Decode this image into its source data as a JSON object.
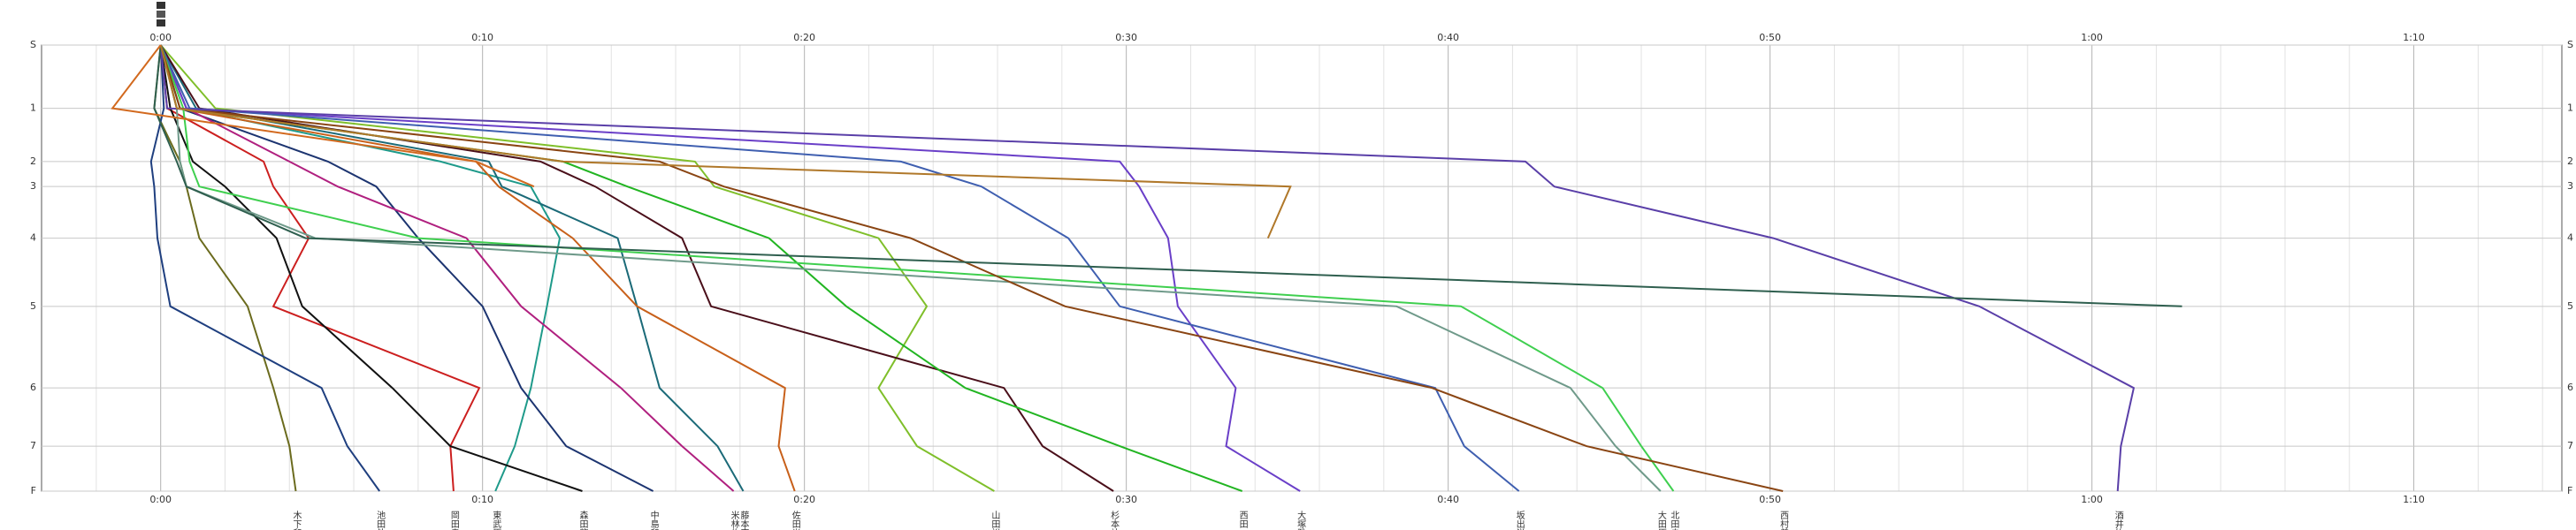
{
  "chart_data": {
    "type": "line",
    "ylabels": [
      "S",
      "1",
      "2",
      "3",
      "4",
      "5",
      "6",
      "7",
      "F"
    ],
    "y": [
      0,
      38,
      70,
      85,
      116,
      157,
      206,
      241,
      268
    ],
    "ylim": [
      0,
      268
    ],
    "xlim": [
      -3.7,
      74.6
    ],
    "xticks": [
      {
        "value": 0,
        "label": "0:00"
      },
      {
        "value": 10,
        "label": "0:10"
      },
      {
        "value": 20,
        "label": "0:20"
      },
      {
        "value": 30,
        "label": "0:30"
      },
      {
        "value": 40,
        "label": "0:40"
      },
      {
        "value": 50,
        "label": "0:50"
      },
      {
        "value": 60,
        "label": "1:00"
      },
      {
        "value": 70,
        "label": "1:10"
      }
    ],
    "grid": true,
    "series": [
      {
        "name": "木下和",
        "color": "#6b6b1e",
        "values": [
          0,
          -0.2,
          0.6,
          0.8,
          1.2,
          2.7,
          3.5,
          4.0,
          4.2
        ]
      },
      {
        "name": "池田外",
        "color": "#1f3f7f",
        "values": [
          0,
          0.1,
          -0.3,
          -0.2,
          -0.1,
          0.3,
          5.0,
          5.8,
          6.8
        ]
      },
      {
        "name": "岡田幸",
        "color": "#cc1f1f",
        "values": [
          0,
          0.2,
          3.2,
          3.5,
          4.6,
          3.5,
          9.9,
          9.0,
          9.1
        ]
      },
      {
        "name": "東武原",
        "color": "#1e9a8a",
        "values": [
          0,
          0.8,
          8.7,
          11.5,
          12.4,
          12.0,
          11.5,
          11.0,
          10.4
        ]
      },
      {
        "name": "森田龍",
        "color": "#111111",
        "values": [
          0,
          0.3,
          1.0,
          2.0,
          3.6,
          4.4,
          7.2,
          9.0,
          13.1
        ]
      },
      {
        "name": "中島和",
        "color": "#1c3470",
        "values": [
          0,
          0.6,
          5.2,
          6.7,
          8.0,
          10.0,
          11.2,
          12.6,
          15.3
        ]
      },
      {
        "name": "米林佐",
        "color": "#b0207f",
        "values": [
          0,
          0.8,
          4.0,
          5.5,
          9.5,
          11.2,
          14.3,
          16.2,
          17.8
        ]
      },
      {
        "name": "藤本宗",
        "color": "#1b6a78",
        "values": [
          0,
          1.1,
          10.2,
          10.6,
          14.2,
          14.8,
          15.5,
          17.3,
          18.1
        ]
      },
      {
        "name": "佐田光",
        "color": "#c8601a",
        "values": [
          0,
          0.5,
          9.8,
          10.5,
          12.8,
          14.8,
          19.4,
          19.2,
          19.7
        ]
      },
      {
        "name": "山田裕",
        "color": "#7fbf2a",
        "values": [
          0,
          1.7,
          16.6,
          17.2,
          22.3,
          23.8,
          22.3,
          23.5,
          25.9
        ]
      },
      {
        "name": "杉本祐",
        "color": "#4a0f1a",
        "values": [
          0,
          1.2,
          11.8,
          13.5,
          16.2,
          17.1,
          26.2,
          27.4,
          29.6
        ]
      },
      {
        "name": "西田一",
        "color": "#22b522",
        "values": [
          0,
          0.5,
          12.5,
          14.5,
          18.9,
          21.3,
          25.0,
          29.8,
          33.6
        ]
      },
      {
        "name": "大塚雅",
        "color": "#6a3fc8",
        "values": [
          0,
          0.8,
          29.8,
          30.4,
          31.3,
          31.6,
          33.4,
          33.1,
          35.4
        ]
      },
      {
        "name": "坂出洋",
        "color": "#3f5fb0",
        "values": [
          0,
          0.9,
          23.0,
          25.5,
          28.2,
          29.8,
          39.6,
          40.5,
          42.2
        ]
      },
      {
        "name": "大田原",
        "color": "#6f9a8a",
        "values": [
          0,
          0.5,
          0.6,
          0.8,
          4.8,
          38.4,
          43.8,
          45.2,
          46.6
        ]
      },
      {
        "name": "北田圭",
        "color": "#3fcf4f",
        "values": [
          0,
          0.7,
          0.9,
          1.2,
          8.0,
          40.4,
          44.8,
          46.0,
          47.0
        ]
      },
      {
        "name": "西村美",
        "color": "#8a4513",
        "values": [
          0,
          0.6,
          15.5,
          17.5,
          23.3,
          28.1,
          39.5,
          44.3,
          50.4
        ]
      },
      {
        "name": "酒井竹",
        "color": "#5a3fa8",
        "values": [
          0,
          0.2,
          42.4,
          43.3,
          50.1,
          56.5,
          61.3,
          60.9,
          60.8
        ]
      },
      {
        "color": "#2f5f4f",
        "values": [
          0,
          -0.2,
          0.5,
          0.8,
          4.5,
          62.8,
          null,
          null,
          null
        ]
      },
      {
        "color": "#b0782a",
        "values": [
          0,
          0.5,
          12.5,
          35.1,
          34.4,
          null,
          null,
          null,
          null
        ]
      },
      {
        "color": "#d2691e",
        "values": [
          0,
          -1.5,
          9.8,
          11.6,
          null,
          null,
          null,
          null,
          null
        ]
      }
    ]
  }
}
